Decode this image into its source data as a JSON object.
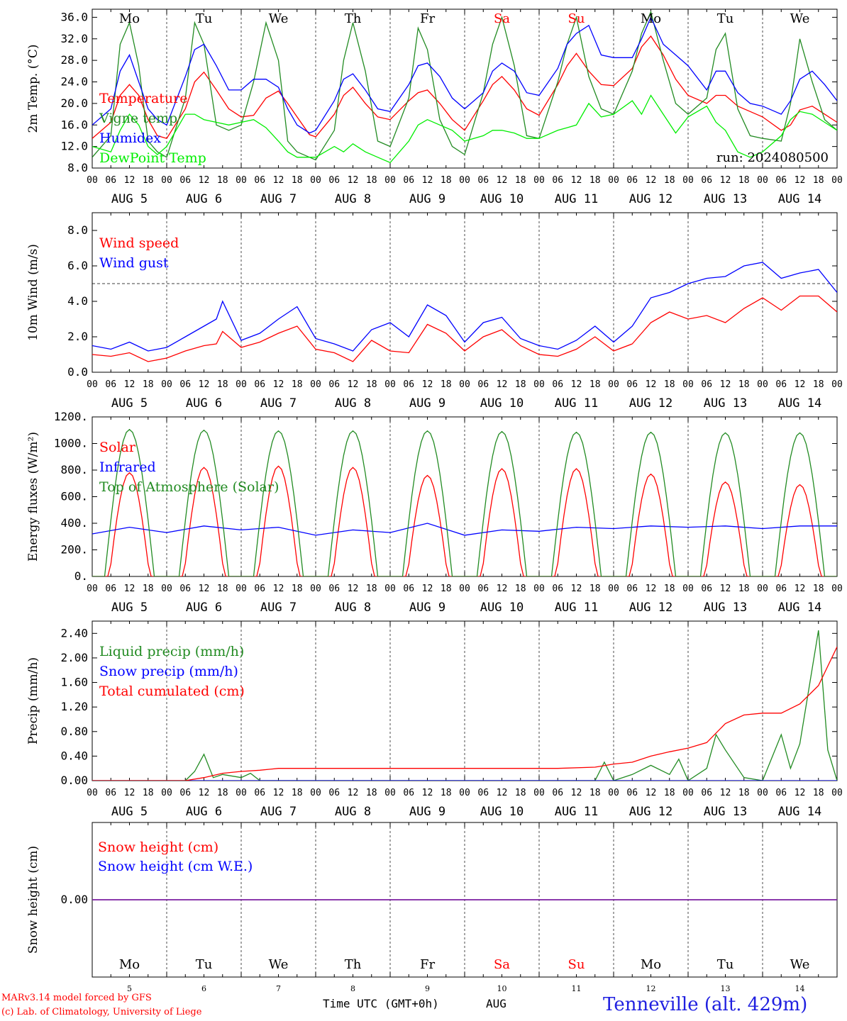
{
  "days": {
    "names": [
      "Mo",
      "Tu",
      "We",
      "Th",
      "Fr",
      "Sa",
      "Su",
      "Mo",
      "Tu",
      "We"
    ],
    "name_colors": [
      "#000000",
      "#000000",
      "#000000",
      "#000000",
      "#000000",
      "#ff0000",
      "#ff0000",
      "#000000",
      "#000000",
      "#000000"
    ],
    "dates": [
      "AUG  5",
      "AUG  6",
      "AUG  7",
      "AUG  8",
      "AUG  9",
      "AUG 10",
      "AUG 11",
      "AUG 12",
      "AUG 13",
      "AUG 14"
    ],
    "day_numbers": [
      "5",
      "6",
      "7",
      "8",
      "9",
      "10",
      "11",
      "12",
      "13",
      "14"
    ],
    "hour_ticks": [
      "00",
      "06",
      "12",
      "18"
    ],
    "end_tick": "00"
  },
  "footer": {
    "model_line": "MARv3.14 model forced by GFS",
    "lab_line": "(c) Lab. of Climatology, University of Liege",
    "xaxis_label": "Time UTC (GMT+0h)",
    "month": "AUG",
    "location": "Tenneville (alt. 429m)"
  },
  "chart_data": [
    {
      "type": "line",
      "ylabel": "2m Temp. (°C)",
      "ylim": [
        8,
        37.5
      ],
      "yticks": [
        "8.0",
        "12.0",
        "16.0",
        "20.0",
        "24.0",
        "28.0",
        "32.0",
        "36.0"
      ],
      "ytick_values": [
        8,
        12,
        16,
        20,
        24,
        28,
        32,
        36
      ],
      "annotation": "run: 2024080500",
      "x_hours": [
        0,
        6,
        9,
        12,
        15,
        18,
        21,
        24,
        30,
        33,
        36,
        40,
        44,
        48,
        52,
        56,
        60,
        63,
        66,
        70,
        72,
        78,
        81,
        84,
        88,
        92,
        96,
        102,
        105,
        108,
        112,
        116,
        120,
        126,
        129,
        132,
        136,
        140,
        144,
        150,
        153,
        156,
        160,
        164,
        168,
        174,
        177,
        180,
        184,
        188,
        192,
        198,
        201,
        204,
        208,
        212,
        216,
        222,
        225,
        228,
        232,
        236,
        240
      ],
      "series": [
        {
          "name": "Temperature",
          "color": "#ff0000",
          "values": [
            13.5,
            16.5,
            21.5,
            23.5,
            21.5,
            17,
            14,
            13.5,
            19,
            24,
            25.8,
            22.5,
            19,
            17.5,
            17.8,
            21,
            22.3,
            20,
            17.5,
            14.2,
            13.8,
            18,
            21.5,
            23,
            20,
            17.5,
            17,
            20.5,
            22,
            22.5,
            20,
            17,
            15,
            20.5,
            23.5,
            25,
            22.5,
            19,
            17.8,
            23.5,
            27,
            29.3,
            26,
            23.5,
            23.3,
            26.5,
            30.5,
            32.5,
            29,
            24.5,
            21.5,
            20,
            21.5,
            21.5,
            19.5,
            18.5,
            17.5,
            15,
            16,
            18.8,
            19.5,
            18,
            16.5
          ]
        },
        {
          "name": "Vigne temp",
          "color": "#228b22",
          "values": [
            10,
            14,
            31,
            35,
            27,
            13,
            11,
            10,
            21,
            35,
            31,
            16,
            15,
            16,
            24,
            35,
            28,
            13,
            11,
            10,
            9.5,
            15,
            28,
            35,
            26,
            13,
            12,
            21,
            34,
            30,
            17,
            12,
            10.5,
            22,
            31,
            36,
            27,
            14,
            13.5,
            24,
            31,
            36,
            25,
            19,
            18,
            26,
            33,
            37,
            28,
            20,
            18,
            21,
            30,
            33,
            19,
            14,
            13.5,
            13,
            20,
            32,
            24,
            17,
            15
          ]
        },
        {
          "name": "Humidex",
          "color": "#0000ff",
          "values": [
            16,
            19,
            26,
            29,
            24,
            19,
            17,
            16,
            25,
            30,
            31,
            27,
            22.5,
            22.5,
            24.5,
            24.5,
            23,
            19,
            16,
            14.5,
            15,
            20.5,
            24.5,
            25.5,
            22.5,
            19,
            18.5,
            23.5,
            27,
            27.5,
            25,
            21,
            19,
            22,
            26,
            27.5,
            26,
            22,
            21.5,
            26.5,
            31,
            33,
            34.5,
            29,
            28.5,
            28.5,
            32,
            36,
            31,
            29,
            27,
            22.5,
            26,
            26,
            22,
            20,
            19.5,
            18,
            20.5,
            24.5,
            26,
            23.5,
            20.5
          ]
        },
        {
          "name": "DewPoint Temp",
          "color": "#00ee00",
          "values": [
            12,
            11,
            15,
            18,
            16,
            12,
            10.5,
            12,
            18,
            18,
            17,
            16.5,
            16,
            16.5,
            17,
            15.5,
            13,
            11,
            10,
            10,
            10,
            12,
            11,
            12.5,
            11,
            10,
            9,
            13,
            16,
            17,
            16,
            15,
            13,
            14,
            15,
            15,
            14.5,
            13.5,
            13.5,
            15,
            15.5,
            16,
            20,
            17.5,
            18,
            20.5,
            18,
            21.5,
            18,
            14.5,
            17.5,
            19.5,
            16.5,
            15,
            11,
            10,
            11,
            14,
            17,
            18.5,
            18,
            16.5,
            15
          ]
        }
      ]
    },
    {
      "type": "line",
      "ylabel": "10m Wind (m/s)",
      "ylim": [
        0,
        9
      ],
      "yticks": [
        "0.0",
        "2.0",
        "4.0",
        "6.0",
        "8.0"
      ],
      "ytick_values": [
        0,
        2,
        4,
        6,
        8
      ],
      "reference_line": 5,
      "x_hours": [
        0,
        6,
        12,
        18,
        24,
        30,
        36,
        40,
        42,
        48,
        54,
        60,
        66,
        72,
        78,
        84,
        90,
        96,
        102,
        108,
        114,
        120,
        126,
        132,
        138,
        144,
        150,
        156,
        162,
        168,
        174,
        180,
        186,
        192,
        198,
        204,
        210,
        216,
        222,
        228,
        234,
        240
      ],
      "series": [
        {
          "name": "Wind speed",
          "color": "#ff0000",
          "values": [
            1.0,
            0.9,
            1.1,
            0.6,
            0.8,
            1.2,
            1.5,
            1.6,
            2.3,
            1.4,
            1.7,
            2.2,
            2.6,
            1.3,
            1.1,
            0.6,
            1.8,
            1.2,
            1.1,
            2.7,
            2.2,
            1.2,
            2.0,
            2.4,
            1.5,
            1.0,
            0.9,
            1.3,
            2.0,
            1.2,
            1.6,
            2.8,
            3.4,
            3.0,
            3.2,
            2.8,
            3.6,
            4.2,
            3.5,
            4.3,
            4.3,
            3.4
          ]
        },
        {
          "name": "Wind gust",
          "color": "#0000ff",
          "values": [
            1.5,
            1.3,
            1.7,
            1.2,
            1.4,
            2.0,
            2.6,
            3.0,
            4.0,
            1.8,
            2.2,
            3.0,
            3.7,
            1.9,
            1.6,
            1.2,
            2.4,
            2.8,
            2.0,
            3.8,
            3.2,
            1.7,
            2.8,
            3.1,
            1.9,
            1.5,
            1.3,
            1.8,
            2.6,
            1.7,
            2.6,
            4.2,
            4.5,
            5.0,
            5.3,
            5.4,
            6.0,
            6.2,
            5.3,
            5.6,
            5.8,
            4.5
          ]
        }
      ]
    },
    {
      "type": "line",
      "ylabel": "Energy fluxes (W/m²)",
      "ylim": [
        0,
        1200
      ],
      "yticks": [
        "0.",
        "200.",
        "400.",
        "600.",
        "800.",
        "1000.",
        "1200."
      ],
      "ytick_values": [
        0,
        200,
        400,
        600,
        800,
        1000,
        1200
      ],
      "series": [
        {
          "name": "Solar",
          "color": "#ff0000",
          "peaks": [
            780,
            820,
            830,
            820,
            760,
            810,
            810,
            770,
            710,
            690
          ]
        },
        {
          "name": "Infrared",
          "color": "#0000ff",
          "x_hours": [
            0,
            12,
            24,
            36,
            48,
            60,
            72,
            84,
            96,
            108,
            120,
            132,
            144,
            156,
            168,
            180,
            192,
            204,
            216,
            228,
            240
          ],
          "values": [
            320,
            370,
            330,
            380,
            350,
            370,
            310,
            350,
            330,
            400,
            310,
            350,
            340,
            370,
            360,
            380,
            370,
            380,
            360,
            380,
            380
          ]
        },
        {
          "name": "Top of Atmosphere (Solar)",
          "color": "#228b22",
          "peaks": [
            1105,
            1100,
            1095,
            1095,
            1095,
            1090,
            1085,
            1085,
            1080,
            1080
          ]
        }
      ]
    },
    {
      "type": "line",
      "ylabel": "Precip (mm/h)",
      "ylim": [
        0,
        2.6
      ],
      "yticks": [
        "0.00",
        "0.40",
        "0.80",
        "1.20",
        "1.60",
        "2.00",
        "2.40"
      ],
      "ytick_values": [
        0,
        0.4,
        0.8,
        1.2,
        1.6,
        2.0,
        2.4
      ],
      "series": [
        {
          "name": "Liquid precip (mm/h)",
          "color": "#228b22",
          "x_hours": [
            0,
            30,
            33,
            36,
            39,
            42,
            48,
            51,
            54,
            57,
            60,
            120,
            162,
            165,
            168,
            174,
            180,
            186,
            189,
            192,
            198,
            201,
            204,
            210,
            216,
            222,
            225,
            228,
            234,
            237,
            240
          ],
          "values": [
            0,
            0,
            0.15,
            0.43,
            0.05,
            0.1,
            0.05,
            0.12,
            0,
            0,
            0,
            0,
            0,
            0.3,
            0,
            0.1,
            0.25,
            0.1,
            0.35,
            0,
            0.2,
            0.75,
            0.5,
            0.05,
            0,
            0.75,
            0.2,
            0.6,
            2.45,
            0.5,
            0
          ]
        },
        {
          "name": "Snow precip (mm/h)",
          "color": "#0000ff",
          "x_hours": [
            0,
            240
          ],
          "values": [
            0,
            0
          ]
        },
        {
          "name": "Total cumulated (cm)",
          "color": "#ff0000",
          "x_hours": [
            0,
            30,
            36,
            42,
            48,
            54,
            60,
            100,
            120,
            150,
            162,
            168,
            174,
            180,
            186,
            192,
            198,
            204,
            210,
            216,
            222,
            228,
            234,
            240
          ],
          "values": [
            0,
            0,
            0.05,
            0.12,
            0.15,
            0.17,
            0.2,
            0.2,
            0.2,
            0.2,
            0.22,
            0.27,
            0.3,
            0.4,
            0.47,
            0.53,
            0.62,
            0.93,
            1.07,
            1.1,
            1.1,
            1.25,
            1.55,
            2.18
          ]
        }
      ]
    },
    {
      "type": "line",
      "ylabel": "Snow height (cm)",
      "ylim": [
        -1,
        1
      ],
      "yticks": [
        "0.00"
      ],
      "ytick_values": [
        0
      ],
      "series": [
        {
          "name": "Snow height (cm)",
          "color": "#ff0000",
          "x_hours": [
            0,
            240
          ],
          "values": [
            0,
            0
          ]
        },
        {
          "name": "Snow height (cm W.E.)",
          "color": "#0000ff",
          "x_hours": [
            0,
            240
          ],
          "values": [
            0,
            0
          ]
        }
      ]
    }
  ]
}
